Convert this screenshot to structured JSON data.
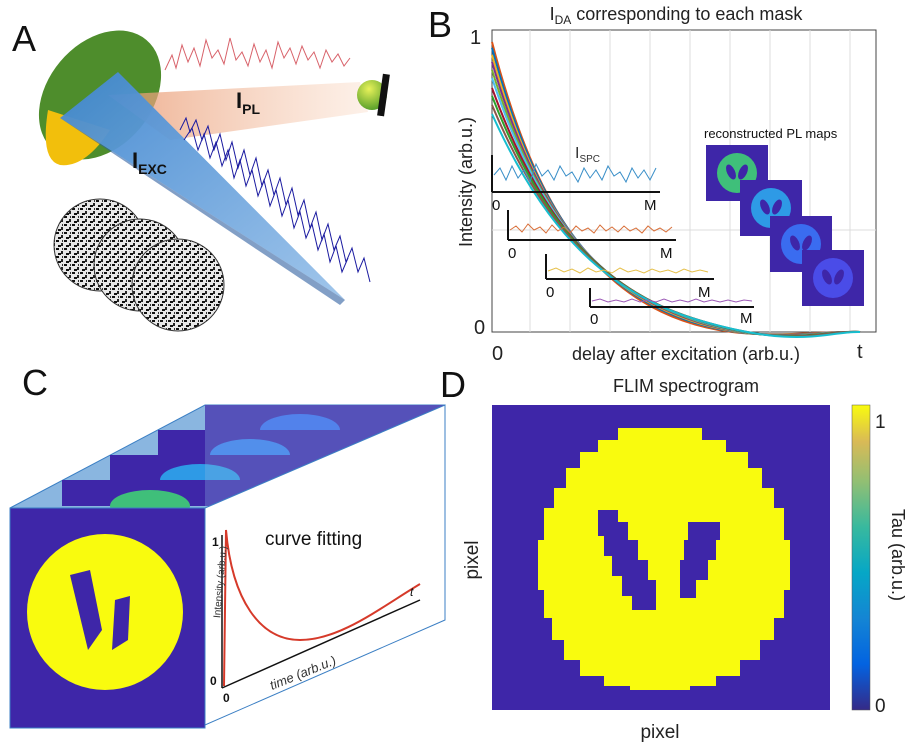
{
  "panels": {
    "A": {
      "letter": "A",
      "i_pl": "I",
      "i_pl_sub": "PL",
      "i_exc": "I",
      "i_exc_sub": "EXC"
    },
    "B": {
      "letter": "B",
      "title_main": "I",
      "title_sub": "DA",
      "title_rest": " corresponding to each mask",
      "ylabel": "Intensity (arb.u.)",
      "xlabel": "delay after excitation (arb.u.)",
      "y_top": "1",
      "y_bottom": "0",
      "x_left": "0",
      "x_right": "t",
      "ispc_main": "I",
      "ispc_sub": "SPC",
      "inset_zero": "0",
      "inset_m": "M",
      "maps_label": "reconstructed PL maps"
    },
    "C": {
      "letter": "C",
      "fit_label": "curve fitting",
      "ylabel": "Intensity (arb.u.)",
      "xlabel": "time (arb.u.)",
      "y_top": "1",
      "y_bottom": "0",
      "x_zero": "0",
      "x_t": "t"
    },
    "D": {
      "letter": "D",
      "title": "FLIM spectrogram",
      "xlabel": "pixel",
      "ylabel": "pixel",
      "cbar_label": "Tau (arb.u.)",
      "cbar_top": "1",
      "cbar_bottom": "0"
    }
  },
  "colors": {
    "parula_dark": "#3e26a8",
    "parula_yellow": "#f9fb0e",
    "green_disk": "#5a9a32",
    "yellow_disk": "#f4c20d",
    "exc_blue": "#3b7fc4",
    "pl_orange": "#f2a878"
  }
}
